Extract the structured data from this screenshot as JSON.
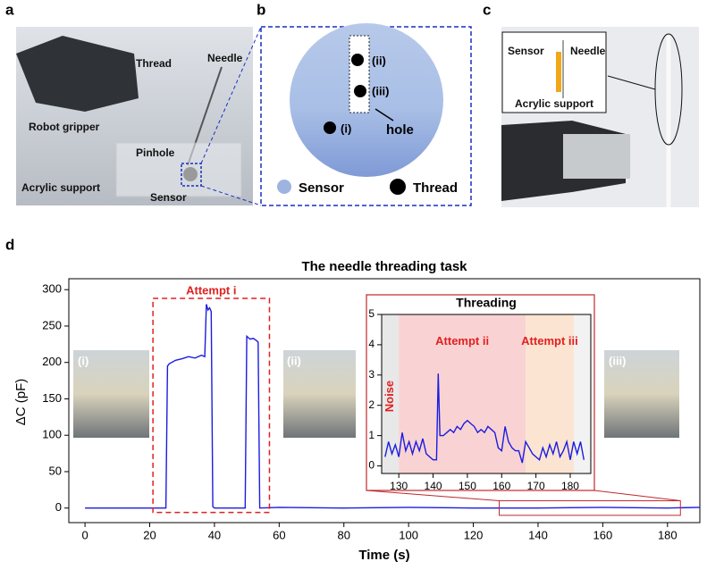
{
  "panels": {
    "a": {
      "label": "a",
      "annotations": [
        "Thread",
        "Needle",
        "Robot gripper",
        "Pinhole",
        "Acrylic support",
        "Sensor"
      ]
    },
    "b": {
      "label": "b",
      "annotations": [
        "(ii)",
        "(iii)",
        "(i)",
        "hole"
      ],
      "legend": [
        "Sensor",
        "Thread"
      ]
    },
    "c": {
      "label": "c",
      "annotations": [
        "Sensor",
        "Needle",
        "Acrylic support"
      ]
    },
    "d": {
      "label": "d",
      "attempt_label": "Attempt i",
      "photo_labels": [
        "(i)",
        "(ii)",
        "(iii)"
      ]
    }
  },
  "chart_data": [
    {
      "type": "line",
      "title": "The needle threading task",
      "xlabel": "Time (s)",
      "ylabel": "ΔC (pF)",
      "color": "#1c1ce0",
      "x": [
        0,
        25,
        25.5,
        26,
        28,
        30,
        32,
        34,
        36,
        37,
        37.5,
        38,
        38.5,
        39,
        39.5,
        40,
        45,
        49.5,
        50,
        51,
        52,
        53,
        53.5,
        54,
        60,
        80,
        100,
        120,
        140,
        160,
        180,
        190
      ],
      "values": [
        0,
        0,
        195,
        198,
        203,
        205,
        208,
        206,
        210,
        208,
        280,
        272,
        275,
        270,
        2,
        0,
        0,
        0,
        236,
        232,
        233,
        230,
        228,
        0,
        1,
        0,
        1,
        0,
        0,
        1,
        0,
        1
      ],
      "xlim": [
        -5,
        190
      ],
      "ylim": [
        -20,
        315
      ],
      "xticks": [
        0,
        20,
        40,
        60,
        80,
        100,
        120,
        140,
        160,
        180
      ],
      "yticks": [
        0,
        50,
        100,
        150,
        200,
        250,
        300
      ]
    },
    {
      "type": "line",
      "title": "Threading",
      "color": "#1c1ce0",
      "regions": [
        {
          "label": "Noise",
          "range": [
            125,
            130
          ],
          "color": "#e8e8e8"
        },
        {
          "label": "Attempt ii",
          "range": [
            130,
            167
          ],
          "color": "#f9d3d3"
        },
        {
          "label": "Attempt iii",
          "range": [
            167,
            181
          ],
          "color": "#fbe5d2"
        }
      ],
      "x": [
        126,
        127,
        128,
        129,
        130,
        131,
        132,
        133,
        134,
        135,
        136,
        137,
        138,
        139,
        140,
        141,
        141.5,
        142,
        143,
        144,
        145,
        146,
        147,
        148,
        149,
        150,
        151,
        152,
        153,
        154,
        155,
        156,
        157,
        158,
        159,
        160,
        161,
        162,
        163,
        164,
        165,
        166,
        167,
        168,
        169,
        170,
        171,
        172,
        173,
        174,
        175,
        176,
        177,
        178,
        179,
        180,
        181,
        182,
        183,
        184
      ],
      "values": [
        0.3,
        0.8,
        0.4,
        0.7,
        0.3,
        1.1,
        0.5,
        0.8,
        0.4,
        0.8,
        0.5,
        0.9,
        0.4,
        0.3,
        0.2,
        0.2,
        3.05,
        1.0,
        1.0,
        1.1,
        1.2,
        1.1,
        1.3,
        1.2,
        1.4,
        1.5,
        1.4,
        1.3,
        1.1,
        1.2,
        1.1,
        1.3,
        1.2,
        1.1,
        0.6,
        0.5,
        1.3,
        0.8,
        0.6,
        0.5,
        0.5,
        0.1,
        0.8,
        0.6,
        0.4,
        0.3,
        0.2,
        0.6,
        0.3,
        0.7,
        0.4,
        0.8,
        0.3,
        0.5,
        0.8,
        0.2,
        0.8,
        0.4,
        0.8,
        0.2
      ],
      "xlim": [
        125,
        186
      ],
      "ylim": [
        -0.25,
        5
      ],
      "xticks": [
        130,
        140,
        150,
        160,
        170,
        180
      ],
      "yticks": [
        0,
        1,
        2,
        3,
        4,
        5
      ]
    }
  ]
}
